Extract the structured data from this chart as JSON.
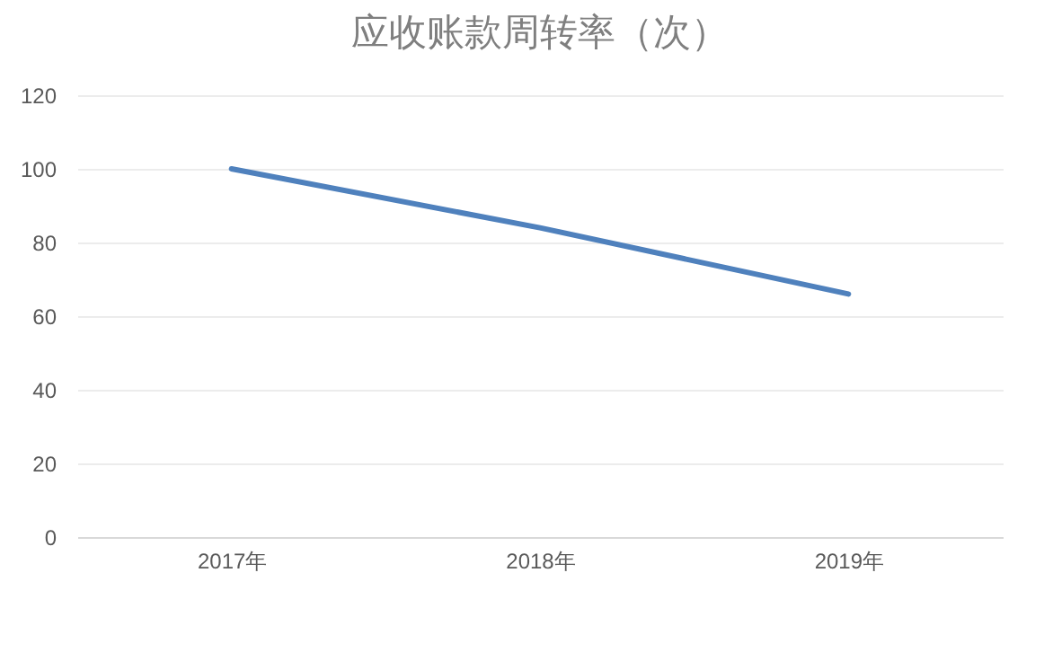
{
  "chart_data": {
    "type": "line",
    "title": "应收账款周转率（次）",
    "categories": [
      "2017年",
      "2018年",
      "2019年"
    ],
    "series": [
      {
        "color": "#4f81bd",
        "values": [
          100,
          84,
          66
        ]
      }
    ],
    "ylim": [
      0,
      120
    ],
    "yticks": [
      0,
      20,
      40,
      60,
      80,
      100,
      120
    ],
    "grid": "y",
    "marker": "none",
    "line_style": "solid"
  }
}
